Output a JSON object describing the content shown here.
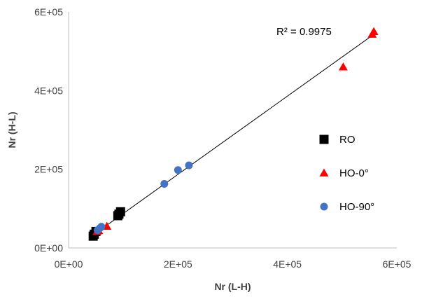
{
  "chart_data": {
    "type": "scatter",
    "title": "",
    "xlabel": "Nr (L-H)",
    "ylabel": "Nr (H-L)",
    "xlim": [
      0,
      600000
    ],
    "ylim": [
      0,
      600000
    ],
    "x_ticks": [
      {
        "value": 0,
        "label": "0E+00"
      },
      {
        "value": 200000,
        "label": "2E+05"
      },
      {
        "value": 400000,
        "label": "4E+05"
      },
      {
        "value": 600000,
        "label": "6E+05"
      }
    ],
    "y_ticks": [
      {
        "value": 0,
        "label": "0E+00"
      },
      {
        "value": 200000,
        "label": "2E+05"
      },
      {
        "value": 400000,
        "label": "4E+05"
      },
      {
        "value": 600000,
        "label": "6E+05"
      }
    ],
    "grid": false,
    "legend": "right",
    "series": [
      {
        "name": "RO",
        "marker": "square",
        "color": "#000000",
        "points": [
          {
            "x": 45000,
            "y": 30000
          },
          {
            "x": 47000,
            "y": 35000
          },
          {
            "x": 50000,
            "y": 42000
          },
          {
            "x": 90000,
            "y": 82000
          },
          {
            "x": 92000,
            "y": 86000
          },
          {
            "x": 95000,
            "y": 92000
          }
        ]
      },
      {
        "name": "HO-0°",
        "marker": "triangle",
        "color": "#ff0000",
        "points": [
          {
            "x": 52000,
            "y": 42000
          },
          {
            "x": 55000,
            "y": 44000
          },
          {
            "x": 70000,
            "y": 55000
          },
          {
            "x": 502000,
            "y": 460000
          },
          {
            "x": 555000,
            "y": 543000
          },
          {
            "x": 558000,
            "y": 550000
          }
        ]
      },
      {
        "name": "HO-90°",
        "marker": "circle",
        "color": "#4472c4",
        "points": [
          {
            "x": 53000,
            "y": 45000
          },
          {
            "x": 57000,
            "y": 50000
          },
          {
            "x": 60000,
            "y": 54000
          },
          {
            "x": 175000,
            "y": 163000
          },
          {
            "x": 200000,
            "y": 198000
          },
          {
            "x": 220000,
            "y": 210000
          }
        ]
      }
    ],
    "trendline": {
      "type": "linear",
      "color": "#000000",
      "from": {
        "x": 45000,
        "y": 33000
      },
      "to": {
        "x": 555000,
        "y": 540000
      }
    },
    "annotations": [
      {
        "text": "R² = 0.9975",
        "x": 380000,
        "y": 550000
      }
    ]
  }
}
